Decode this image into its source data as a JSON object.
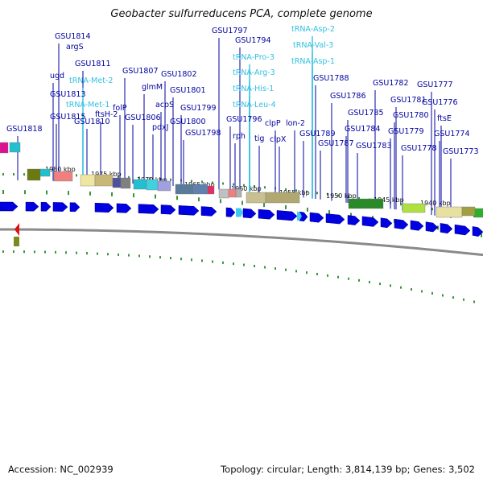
{
  "title": "Geobacter sulfurreducens PCA, complete genome",
  "footer": {
    "accession": "Accession: NC_002939",
    "topology": "Topology: circular; Length: 3,814,139 bp; Genes: 3,502"
  },
  "colors": {
    "gene_label": "#0000a0",
    "trna_label": "#33c0e0",
    "gene_arrow": "#0000e0",
    "backbone": "#8a8a8a",
    "tick": "#0a7a0a"
  },
  "kbp_labels": [
    "1980 kbp",
    "1975 kbp",
    "1970 kbp",
    "1965 kbp",
    "1960 kbp",
    "1955 kbp",
    "1950 kbp",
    "1945 kbp",
    "1940 kbp"
  ],
  "gene_labels": [
    {
      "text": "GSU1814",
      "kind": "gene"
    },
    {
      "text": "argS",
      "kind": "gene"
    },
    {
      "text": "GSU1811",
      "kind": "gene"
    },
    {
      "text": "ugd",
      "kind": "gene"
    },
    {
      "text": "tRNA-Met-2",
      "kind": "trna"
    },
    {
      "text": "GSU1813",
      "kind": "gene"
    },
    {
      "text": "tRNA-Met-1",
      "kind": "trna"
    },
    {
      "text": "GSU1815",
      "kind": "gene"
    },
    {
      "text": "GSU1810",
      "kind": "gene"
    },
    {
      "text": "GSU1818",
      "kind": "gene"
    },
    {
      "text": "ftsH-2",
      "kind": "gene"
    },
    {
      "text": "folP",
      "kind": "gene"
    },
    {
      "text": "GSU1807",
      "kind": "gene"
    },
    {
      "text": "glmM",
      "kind": "gene"
    },
    {
      "text": "GSU1806",
      "kind": "gene"
    },
    {
      "text": "GSU1802",
      "kind": "gene"
    },
    {
      "text": "GSU1801",
      "kind": "gene"
    },
    {
      "text": "acpS",
      "kind": "gene"
    },
    {
      "text": "pdxJ",
      "kind": "gene"
    },
    {
      "text": "GSU1800",
      "kind": "gene"
    },
    {
      "text": "GSU1799",
      "kind": "gene"
    },
    {
      "text": "GSU1798",
      "kind": "gene"
    },
    {
      "text": "GSU1797",
      "kind": "gene"
    },
    {
      "text": "GSU1794",
      "kind": "gene"
    },
    {
      "text": "tRNA-Pro-3",
      "kind": "trna"
    },
    {
      "text": "tRNA-Arg-3",
      "kind": "trna"
    },
    {
      "text": "tRNA-His-1",
      "kind": "trna"
    },
    {
      "text": "tRNA-Leu-4",
      "kind": "trna"
    },
    {
      "text": "GSU1796",
      "kind": "gene"
    },
    {
      "text": "rph",
      "kind": "gene"
    },
    {
      "text": "tig",
      "kind": "gene"
    },
    {
      "text": "clpP",
      "kind": "gene"
    },
    {
      "text": "clpX",
      "kind": "gene"
    },
    {
      "text": "tRNA-Asp-2",
      "kind": "trna"
    },
    {
      "text": "tRNA-Val-3",
      "kind": "trna"
    },
    {
      "text": "tRNA-Asp-1",
      "kind": "trna"
    },
    {
      "text": "lon-2",
      "kind": "gene"
    },
    {
      "text": "GSU1788",
      "kind": "gene"
    },
    {
      "text": "GSU1789",
      "kind": "gene"
    },
    {
      "text": "GSU1786",
      "kind": "gene"
    },
    {
      "text": "GSU1787",
      "kind": "gene"
    },
    {
      "text": "GSU1785",
      "kind": "gene"
    },
    {
      "text": "GSU1784",
      "kind": "gene"
    },
    {
      "text": "GSU1783",
      "kind": "gene"
    },
    {
      "text": "GSU1782",
      "kind": "gene"
    },
    {
      "text": "GSU1781",
      "kind": "gene"
    },
    {
      "text": "GSU1780",
      "kind": "gene"
    },
    {
      "text": "GSU1779",
      "kind": "gene"
    },
    {
      "text": "GSU1778",
      "kind": "gene"
    },
    {
      "text": "GSU1777",
      "kind": "gene"
    },
    {
      "text": "GSU1776",
      "kind": "gene"
    },
    {
      "text": "ftsE",
      "kind": "gene"
    },
    {
      "text": "GSU1774",
      "kind": "gene"
    },
    {
      "text": "GSU1773",
      "kind": "gene"
    }
  ]
}
